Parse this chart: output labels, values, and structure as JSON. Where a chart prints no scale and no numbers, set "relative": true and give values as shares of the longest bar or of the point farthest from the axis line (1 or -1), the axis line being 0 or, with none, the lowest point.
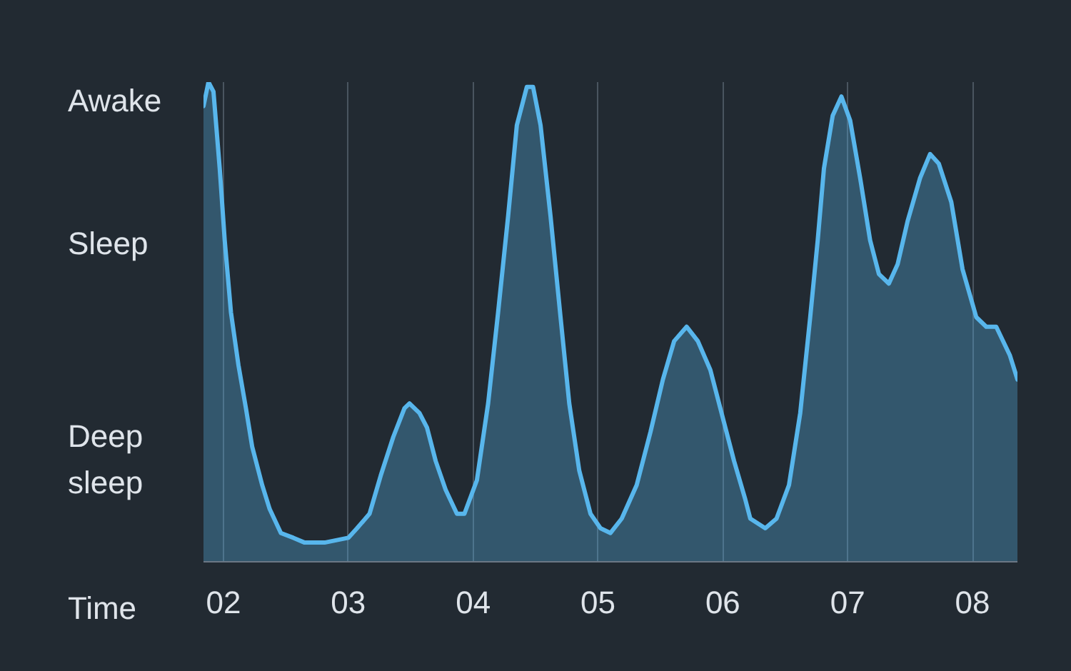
{
  "chart_data": {
    "type": "area",
    "relative": true,
    "xlabel": "Time",
    "color": "#58b6ec",
    "grid": "x",
    "xlim": [
      1.84,
      8.36
    ],
    "xticks": [
      {
        "value": 2,
        "label": "02"
      },
      {
        "value": 3,
        "label": "03"
      },
      {
        "value": 4,
        "label": "04"
      },
      {
        "value": 5,
        "label": "05"
      },
      {
        "value": 6,
        "label": "06"
      },
      {
        "value": 7,
        "label": "07"
      },
      {
        "value": 8,
        "label": "08"
      }
    ],
    "annotations": [
      "Awake",
      "Sleep",
      "Deep sleep"
    ],
    "x": [
      1.84,
      1.88,
      1.92,
      1.97,
      2.01,
      2.06,
      2.12,
      2.18,
      2.23,
      2.31,
      2.37,
      2.46,
      2.56,
      2.65,
      2.81,
      3.0,
      3.07,
      3.17,
      3.26,
      3.36,
      3.45,
      3.49,
      3.57,
      3.63,
      3.7,
      3.78,
      3.87,
      3.93,
      4.03,
      4.12,
      4.2,
      4.28,
      4.35,
      4.43,
      4.48,
      4.54,
      4.62,
      4.7,
      4.77,
      4.85,
      4.94,
      5.02,
      5.1,
      5.19,
      5.31,
      5.42,
      5.52,
      5.61,
      5.71,
      5.8,
      5.9,
      5.99,
      6.09,
      6.18,
      6.22,
      6.34,
      6.43,
      6.53,
      6.62,
      6.7,
      6.76,
      6.81,
      6.88,
      6.95,
      7.02,
      7.1,
      7.18,
      7.25,
      7.33,
      7.4,
      7.48,
      7.58,
      7.66,
      7.73,
      7.83,
      7.92,
      8.03,
      8.11,
      8.19,
      8.3,
      8.36
    ],
    "values": [
      0.95,
      1.0,
      0.98,
      0.82,
      0.67,
      0.52,
      0.41,
      0.32,
      0.24,
      0.16,
      0.11,
      0.06,
      0.05,
      0.04,
      0.04,
      0.05,
      0.07,
      0.1,
      0.18,
      0.26,
      0.32,
      0.33,
      0.31,
      0.28,
      0.21,
      0.15,
      0.1,
      0.1,
      0.17,
      0.33,
      0.52,
      0.72,
      0.91,
      0.99,
      0.99,
      0.91,
      0.72,
      0.51,
      0.33,
      0.19,
      0.1,
      0.07,
      0.06,
      0.09,
      0.16,
      0.27,
      0.38,
      0.46,
      0.49,
      0.46,
      0.4,
      0.31,
      0.21,
      0.13,
      0.09,
      0.07,
      0.09,
      0.16,
      0.31,
      0.51,
      0.67,
      0.82,
      0.93,
      0.97,
      0.92,
      0.8,
      0.67,
      0.6,
      0.58,
      0.62,
      0.71,
      0.8,
      0.85,
      0.83,
      0.75,
      0.61,
      0.51,
      0.49,
      0.49,
      0.43,
      0.38
    ]
  }
}
